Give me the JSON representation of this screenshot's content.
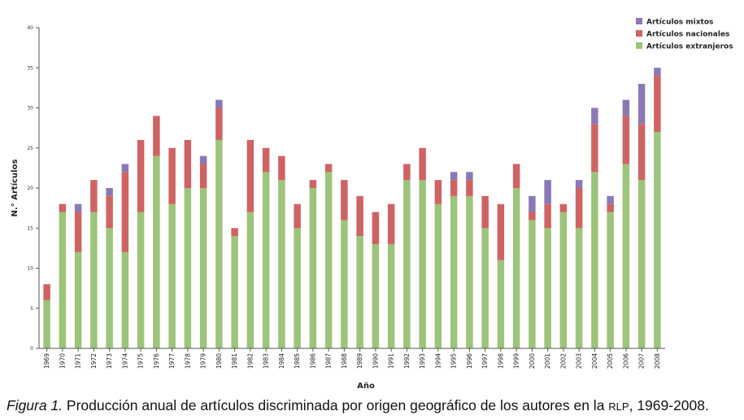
{
  "chart_data": {
    "type": "bar",
    "stacked": true,
    "xlabel": "Año",
    "ylabel": "N.° Artículos",
    "ylim": [
      0,
      40
    ],
    "yticks": [
      0,
      5,
      10,
      15,
      20,
      25,
      30,
      35,
      40
    ],
    "grid": false,
    "legend_position": "top-right",
    "categories": [
      "1969",
      "1970",
      "1971",
      "1972",
      "1973",
      "1974",
      "1975",
      "1976",
      "1977",
      "1978",
      "1979",
      "1980",
      "1981",
      "1982",
      "1983",
      "1984",
      "1985",
      "1986",
      "1987",
      "1988",
      "1989",
      "1990",
      "1991",
      "1992",
      "1993",
      "1994",
      "1995",
      "1996",
      "1997",
      "1998",
      "1999",
      "2000",
      "2001",
      "2002",
      "2003",
      "2004",
      "2005",
      "2006",
      "2007",
      "2008"
    ],
    "series": [
      {
        "name": "Artículos extranjeros",
        "color": "#9cc47a",
        "values": [
          6,
          17,
          12,
          17,
          15,
          12,
          17,
          24,
          18,
          20,
          20,
          26,
          14,
          17,
          22,
          21,
          15,
          20,
          22,
          16,
          14,
          13,
          13,
          21,
          21,
          18,
          19,
          19,
          15,
          11,
          20,
          16,
          15,
          17,
          15,
          22,
          17,
          23,
          21,
          27
        ]
      },
      {
        "name": "Artículos nacionales",
        "color": "#cf6363",
        "values": [
          2,
          1,
          5,
          4,
          4,
          10,
          9,
          5,
          7,
          6,
          3,
          4,
          1,
          9,
          3,
          3,
          3,
          1,
          1,
          5,
          5,
          4,
          5,
          2,
          4,
          3,
          2,
          2,
          4,
          7,
          3,
          1,
          3,
          1,
          5,
          6,
          1,
          6,
          7,
          7
        ]
      },
      {
        "name": "Artículos mixtos",
        "color": "#8b79b6",
        "values": [
          0,
          0,
          1,
          0,
          1,
          1,
          0,
          0,
          0,
          0,
          1,
          1,
          0,
          0,
          0,
          0,
          0,
          0,
          0,
          0,
          0,
          0,
          0,
          0,
          0,
          0,
          1,
          1,
          0,
          0,
          0,
          2,
          3,
          0,
          1,
          2,
          1,
          2,
          5,
          1
        ]
      }
    ]
  },
  "caption": {
    "figure_label": "Figura 1.",
    "text_before": " Producción anual de artículos discriminada por origen geográfico de los autores en la ",
    "journal": "RLP",
    "text_after": ", 1969-2008."
  }
}
